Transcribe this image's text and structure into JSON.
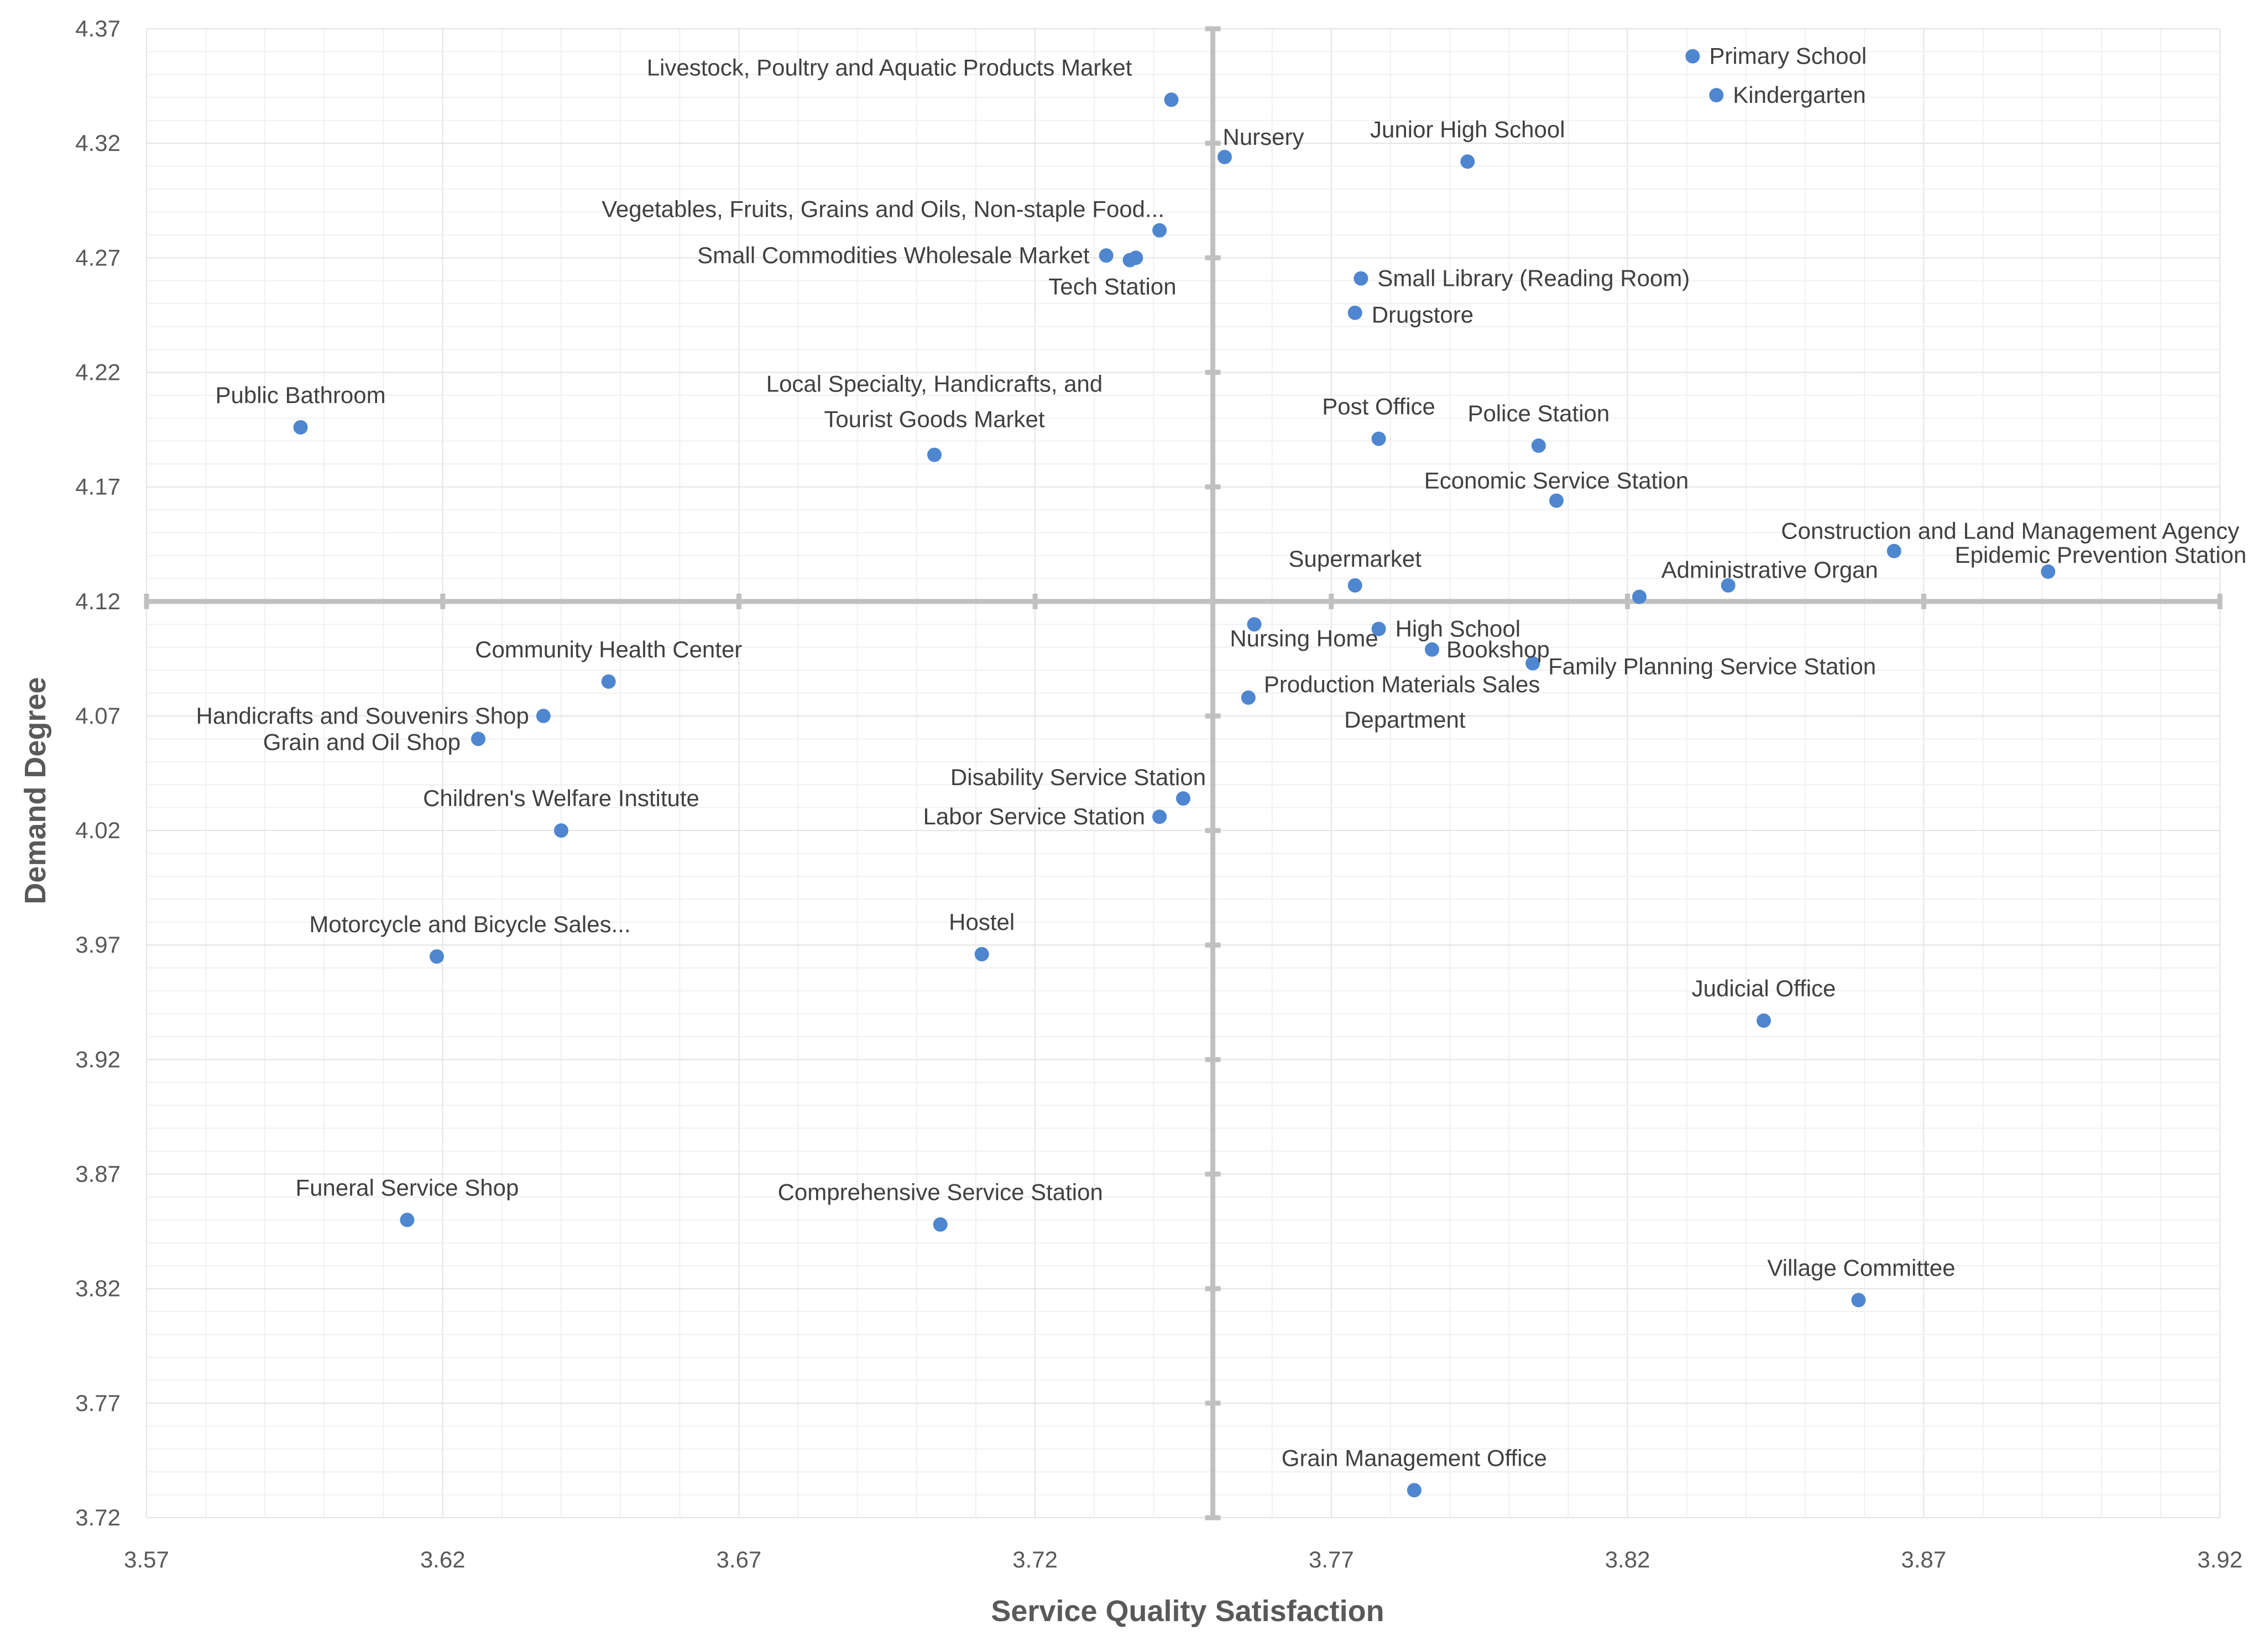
{
  "chart_data": {
    "type": "scatter",
    "xlabel": "Service Quality Satisfaction",
    "ylabel": "Demand Degree",
    "xlim": [
      3.57,
      3.92
    ],
    "ylim": [
      3.72,
      4.37
    ],
    "xticks": [
      "3.57",
      "3.62",
      "3.67",
      "3.72",
      "3.77",
      "3.82",
      "3.87",
      "3.92"
    ],
    "yticks": [
      "3.72",
      "3.77",
      "3.82",
      "3.87",
      "3.92",
      "3.97",
      "4.02",
      "4.07",
      "4.12",
      "4.17",
      "4.22",
      "4.27",
      "4.32",
      "4.37"
    ],
    "quadrant_axes": {
      "x": 3.75,
      "y": 4.12
    },
    "grid": true,
    "color": "#4e86cf",
    "points": [
      {
        "label": "Primary School",
        "x": 3.831,
        "y": 4.358
      },
      {
        "label": "Kindergarten",
        "x": 3.835,
        "y": 4.341
      },
      {
        "label": "Livestock, Poultry and Aquatic Products Market",
        "x": 3.743,
        "y": 4.339
      },
      {
        "label": "Nursery",
        "x": 3.752,
        "y": 4.314
      },
      {
        "label": "Junior High School",
        "x": 3.793,
        "y": 4.312
      },
      {
        "label": "Vegetables, Fruits, Grains and Oils, Non-staple Food...",
        "x": 3.741,
        "y": 4.282
      },
      {
        "label": "Small Commodities Wholesale Market",
        "x": 3.732,
        "y": 4.271
      },
      {
        "label": "Tech Station",
        "x": 3.736,
        "y": 4.269
      },
      {
        "label": "",
        "x": 3.737,
        "y": 4.27
      },
      {
        "label": "Small Library (Reading Room)",
        "x": 3.775,
        "y": 4.261
      },
      {
        "label": "Drugstore",
        "x": 3.774,
        "y": 4.246
      },
      {
        "label": "Public Bathroom",
        "x": 3.596,
        "y": 4.196
      },
      {
        "label": "Local Specialty, Handicrafts, and Tourist Goods Market",
        "x": 3.703,
        "y": 4.184
      },
      {
        "label": "Post Office",
        "x": 3.778,
        "y": 4.191
      },
      {
        "label": "Police Station",
        "x": 3.805,
        "y": 4.188
      },
      {
        "label": "Economic Service Station",
        "x": 3.808,
        "y": 4.164
      },
      {
        "label": "Construction and Land Management Agency",
        "x": 3.865,
        "y": 4.142
      },
      {
        "label": "Epidemic Prevention Station",
        "x": 3.891,
        "y": 4.133
      },
      {
        "label": "Administrative Organ",
        "x": 3.837,
        "y": 4.127
      },
      {
        "label": "Supermarket",
        "x": 3.774,
        "y": 4.127
      },
      {
        "label": "",
        "x": 3.822,
        "y": 4.122
      },
      {
        "label": "Nursing Home",
        "x": 3.757,
        "y": 4.11
      },
      {
        "label": "High School",
        "x": 3.778,
        "y": 4.108
      },
      {
        "label": "Bookshop",
        "x": 3.787,
        "y": 4.099
      },
      {
        "label": "Family Planning Service Station",
        "x": 3.804,
        "y": 4.093
      },
      {
        "label": "Production Materials Sales Department",
        "x": 3.756,
        "y": 4.078
      },
      {
        "label": "Community Health Center",
        "x": 3.648,
        "y": 4.085
      },
      {
        "label": "Handicrafts and Souvenirs Shop",
        "x": 3.637,
        "y": 4.07
      },
      {
        "label": "Grain and Oil Shop",
        "x": 3.626,
        "y": 4.06
      },
      {
        "label": "Disability Service Station",
        "x": 3.745,
        "y": 4.034
      },
      {
        "label": "Labor Service Station",
        "x": 3.741,
        "y": 4.026
      },
      {
        "label": "Children's Welfare Institute",
        "x": 3.64,
        "y": 4.02
      },
      {
        "label": "Motorcycle and Bicycle Sales...",
        "x": 3.619,
        "y": 3.965
      },
      {
        "label": "Hostel",
        "x": 3.711,
        "y": 3.966
      },
      {
        "label": "Judicial Office",
        "x": 3.843,
        "y": 3.937
      },
      {
        "label": "Funeral Service Shop",
        "x": 3.614,
        "y": 3.85
      },
      {
        "label": "Comprehensive Service Station",
        "x": 3.704,
        "y": 3.848
      },
      {
        "label": "Village Committee",
        "x": 3.859,
        "y": 3.815
      },
      {
        "label": "Grain Management Office",
        "x": 3.784,
        "y": 3.732
      }
    ]
  }
}
